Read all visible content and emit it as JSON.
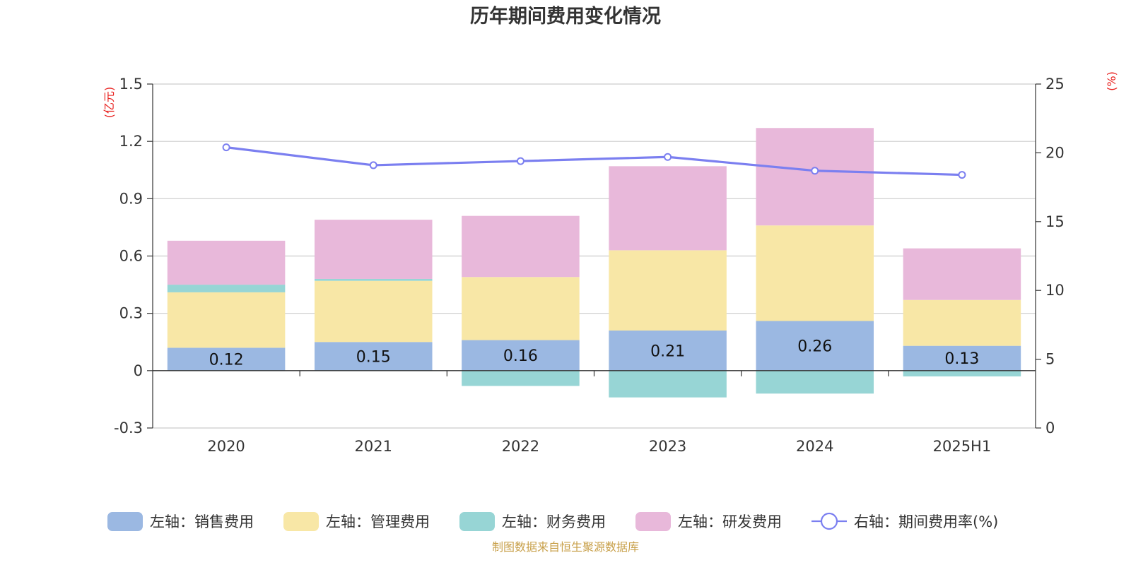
{
  "chart_data": {
    "type": "bar",
    "title": "历年期间费用变化情况",
    "categories": [
      "2020",
      "2021",
      "2022",
      "2023",
      "2024",
      "2025H1"
    ],
    "left_axis": {
      "unit_label": "(亿元)",
      "ylim": [
        -0.3,
        1.5
      ],
      "ticks": [
        -0.3,
        0,
        0.3,
        0.6,
        0.9,
        1.2,
        1.5
      ],
      "tick_labels": [
        "-0.3",
        "0",
        "0.3",
        "0.6",
        "0.9",
        "1.2",
        "1.5"
      ]
    },
    "right_axis": {
      "unit_label": "(%)",
      "ylim": [
        0,
        25
      ],
      "ticks": [
        0,
        5,
        10,
        15,
        20,
        25
      ],
      "tick_labels": [
        "0",
        "5",
        "10",
        "15",
        "20",
        "25"
      ]
    },
    "series": [
      {
        "name": "左轴：销售费用",
        "type": "bar",
        "axis": "left",
        "color": "#9bb8e2",
        "values": [
          0.12,
          0.15,
          0.16,
          0.21,
          0.26,
          0.13
        ],
        "data_labels": [
          "0.12",
          "0.15",
          "0.16",
          "0.21",
          "0.26",
          "0.13"
        ]
      },
      {
        "name": "左轴：管理费用",
        "type": "bar",
        "axis": "left",
        "color": "#f8e7a6",
        "values": [
          0.29,
          0.32,
          0.33,
          0.42,
          0.5,
          0.24
        ]
      },
      {
        "name": "左轴：财务费用",
        "type": "bar",
        "axis": "left",
        "color": "#97d5d5",
        "values": [
          0.04,
          0.01,
          -0.08,
          -0.14,
          -0.12,
          -0.03
        ]
      },
      {
        "name": "左轴：研发费用",
        "type": "bar",
        "axis": "left",
        "color": "#e8b8da",
        "values": [
          0.23,
          0.31,
          0.32,
          0.44,
          0.51,
          0.27
        ]
      },
      {
        "name": "右轴：期间费用率(%)",
        "type": "line",
        "axis": "right",
        "color": "#7b7ff0",
        "values": [
          20.4,
          19.1,
          19.4,
          19.7,
          18.7,
          18.4
        ]
      }
    ],
    "grid": true,
    "legend_position": "bottom",
    "source_note": "制图数据来自恒生聚源数据库"
  }
}
